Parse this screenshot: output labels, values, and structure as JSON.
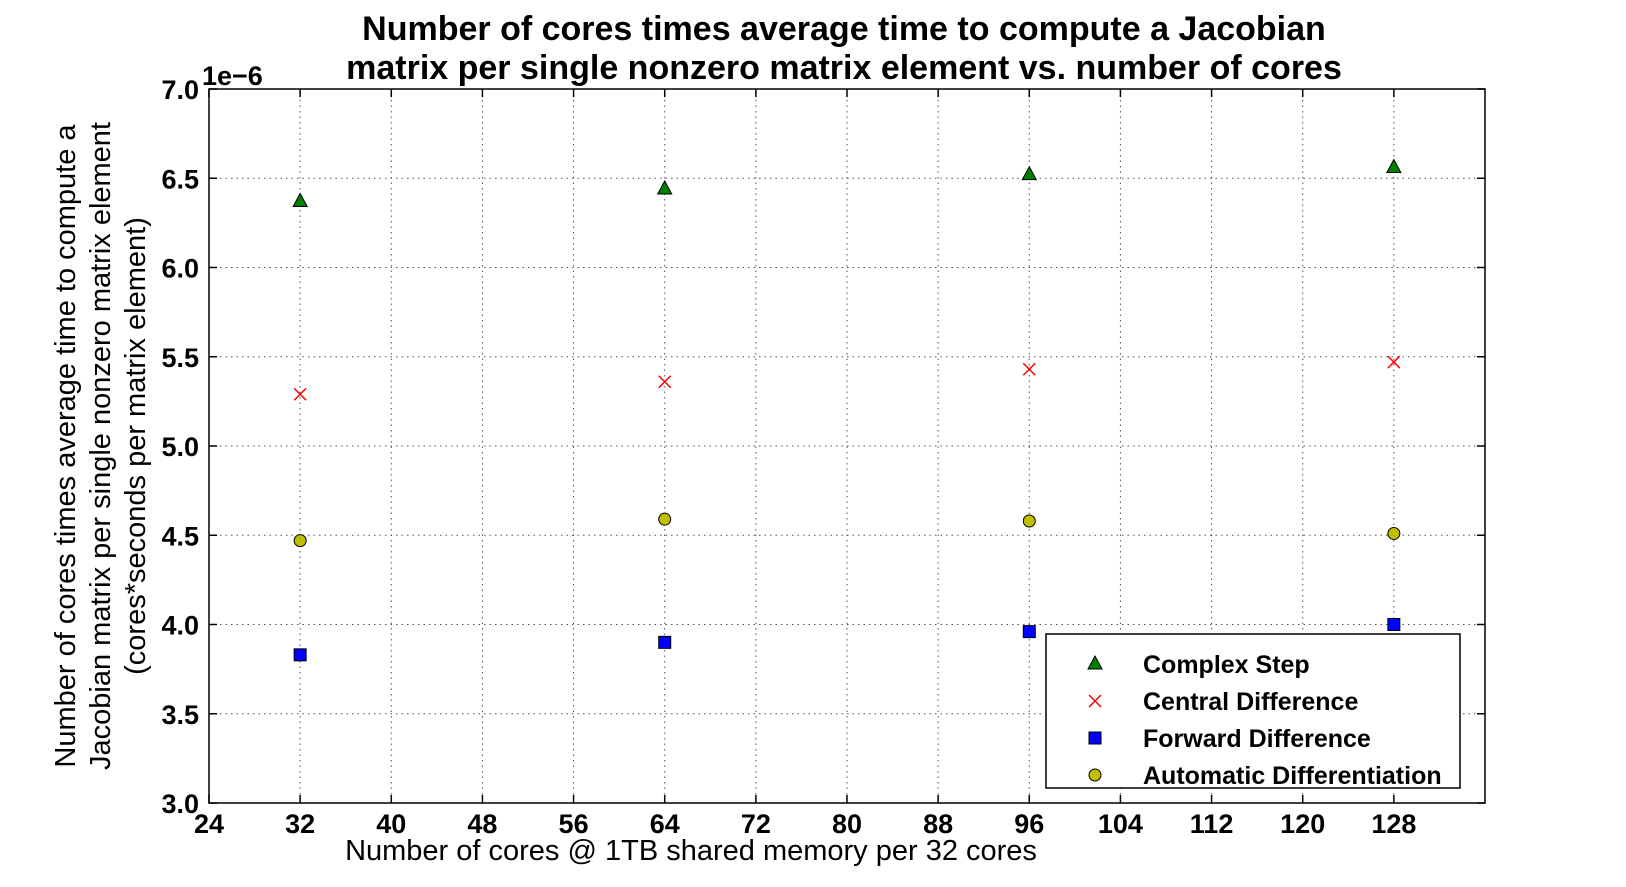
{
  "chart_data": {
    "type": "scatter",
    "title_lines": [
      "Number of cores times average time to compute a Jacobian",
      "matrix per single nonzero matrix element vs. number of cores"
    ],
    "xlabel": "Number of cores @ 1TB shared memory per 32 cores",
    "ylabel_lines": [
      "Number of cores times average time to compute a",
      "Jacobian matrix per single nonzero matrix element",
      "(cores*seconds per matrix element)"
    ],
    "y_offset_text": "1e−6",
    "xlim": [
      24,
      136
    ],
    "ylim": [
      3.0,
      7.0
    ],
    "x_ticks": [
      24,
      32,
      40,
      48,
      56,
      64,
      72,
      80,
      88,
      96,
      104,
      112,
      120,
      128
    ],
    "x_tick_labels": [
      "24",
      "32",
      "40",
      "48",
      "56",
      "64",
      "72",
      "80",
      "88",
      "96",
      "104",
      "112",
      "120",
      "128"
    ],
    "y_ticks": [
      3.0,
      3.5,
      4.0,
      4.5,
      5.0,
      5.5,
      6.0,
      6.5,
      7.0
    ],
    "y_tick_labels": [
      "3.0",
      "3.5",
      "4.0",
      "4.5",
      "5.0",
      "5.5",
      "6.0",
      "6.5",
      "7.0"
    ],
    "grid": true,
    "legend_position": "lower-right",
    "x": [
      32,
      64,
      96,
      128
    ],
    "series": [
      {
        "name": "Complex Step",
        "marker": "triangle",
        "color": "#008000",
        "values": [
          6.37,
          6.44,
          6.52,
          6.56
        ]
      },
      {
        "name": "Central Difference",
        "marker": "x",
        "color": "#ff0000",
        "values": [
          5.29,
          5.36,
          5.43,
          5.47
        ]
      },
      {
        "name": "Forward Difference",
        "marker": "square",
        "color": "#0000ff",
        "values": [
          3.83,
          3.9,
          3.96,
          4.0
        ]
      },
      {
        "name": "Automatic Differentiation",
        "marker": "circle",
        "color": "#bfbf00",
        "values": [
          4.47,
          4.59,
          4.58,
          4.51
        ]
      }
    ]
  }
}
